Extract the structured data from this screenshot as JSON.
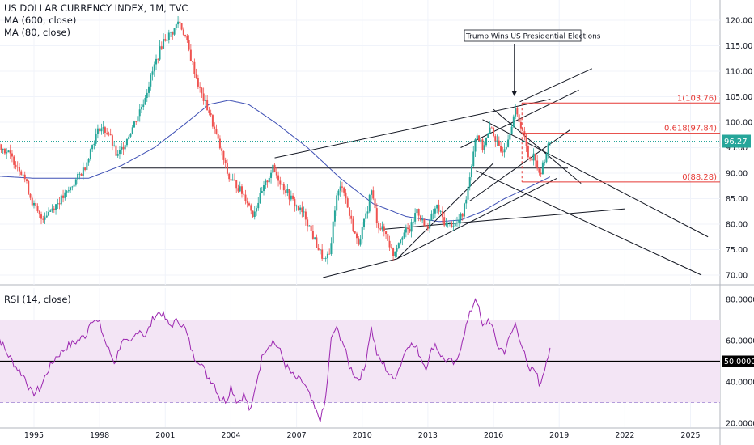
{
  "header": {
    "title": "US DOLLAR CURRENCY INDEX, 1M, TVC",
    "indicators": [
      "MA (600, close)",
      "MA (80, close)"
    ]
  },
  "rsi_panel": {
    "title": "RSI (14, close)"
  },
  "annotation": {
    "text": "Trump Wins US Presidential Elections"
  },
  "current_price": "96.27",
  "fib_labels": [
    "1(103.76)",
    "0.618(97.84)",
    "0(88.28)"
  ],
  "colors": {
    "up": "#26a69a",
    "down": "#ef5350",
    "ma80": "#3f51b5",
    "rsi": "#9c27b0",
    "rsi_band": "#f3e5f5",
    "fib": "#e53935",
    "price_line": "#26a69a",
    "price_tag": "#26a69a"
  },
  "chart_data": [
    {
      "type": "candlestick",
      "title": "US DOLLAR CURRENCY INDEX, 1M, TVC",
      "x_ticks": [
        "1995",
        "1998",
        "2001",
        "2004",
        "2007",
        "2010",
        "2013",
        "2016",
        "2019",
        "2022",
        "2025"
      ],
      "y_ticks": [
        "70.00",
        "75.00",
        "80.00",
        "85.00",
        "90.00",
        "95.00",
        "100.00",
        "105.00",
        "110.00",
        "115.00",
        "120.00"
      ],
      "ylim": [
        68,
        122
      ],
      "anchors": [
        [
          1993.0,
          93.0
        ],
        [
          1993.3,
          96.0
        ],
        [
          1993.8,
          94.0
        ],
        [
          1994.5,
          90.0
        ],
        [
          1994.9,
          84.5
        ],
        [
          1995.3,
          81.0
        ],
        [
          1995.8,
          83.0
        ],
        [
          1996.5,
          86.0
        ],
        [
          1997.3,
          91.0
        ],
        [
          1997.7,
          96.0
        ],
        [
          1998.0,
          99.0
        ],
        [
          1998.4,
          98.0
        ],
        [
          1998.8,
          93.0
        ],
        [
          1999.5,
          99.0
        ],
        [
          2000.0,
          104.0
        ],
        [
          2000.5,
          111.0
        ],
        [
          2000.9,
          116.0
        ],
        [
          2001.4,
          118.0
        ],
        [
          2001.6,
          120.0
        ],
        [
          2001.9,
          117.0
        ],
        [
          2002.2,
          112.0
        ],
        [
          2002.6,
          106.0
        ],
        [
          2003.0,
          102.0
        ],
        [
          2003.5,
          95.0
        ],
        [
          2003.9,
          89.0
        ],
        [
          2004.2,
          88.0
        ],
        [
          2004.7,
          85.0
        ],
        [
          2005.0,
          82.0
        ],
        [
          2005.4,
          86.0
        ],
        [
          2005.9,
          91.0
        ],
        [
          2006.3,
          88.0
        ],
        [
          2006.9,
          84.0
        ],
        [
          2007.4,
          81.5
        ],
        [
          2007.9,
          76.0
        ],
        [
          2008.3,
          72.5
        ],
        [
          2008.5,
          74.0
        ],
        [
          2008.8,
          85.0
        ],
        [
          2009.1,
          88.0
        ],
        [
          2009.4,
          82.0
        ],
        [
          2009.8,
          76.0
        ],
        [
          2010.2,
          82.0
        ],
        [
          2010.4,
          87.0
        ],
        [
          2010.7,
          80.0
        ],
        [
          2011.1,
          78.0
        ],
        [
          2011.4,
          74.0
        ],
        [
          2011.8,
          78.0
        ],
        [
          2012.2,
          79.0
        ],
        [
          2012.5,
          83.0
        ],
        [
          2012.9,
          79.0
        ],
        [
          2013.4,
          83.5
        ],
        [
          2013.8,
          80.0
        ],
        [
          2014.3,
          80.0
        ],
        [
          2014.6,
          82.0
        ],
        [
          2014.9,
          89.0
        ],
        [
          2015.2,
          98.0
        ],
        [
          2015.5,
          95.0
        ],
        [
          2015.9,
          99.0
        ],
        [
          2016.3,
          94.0
        ],
        [
          2016.6,
          96.0
        ],
        [
          2016.9,
          101.0
        ],
        [
          2017.0,
          102.0
        ],
        [
          2017.3,
          99.0
        ],
        [
          2017.6,
          93.0
        ],
        [
          2017.9,
          93.5
        ],
        [
          2018.1,
          89.0
        ],
        [
          2018.4,
          94.0
        ],
        [
          2018.6,
          96.27
        ]
      ],
      "ma80_anchors": [
        [
          1993.0,
          89.5
        ],
        [
          1995.0,
          89.0
        ],
        [
          1997.5,
          89.0
        ],
        [
          1999.0,
          91.5
        ],
        [
          2000.5,
          95.0
        ],
        [
          2002.0,
          100.0
        ],
        [
          2003.0,
          103.5
        ],
        [
          2003.9,
          104.3
        ],
        [
          2004.8,
          103.5
        ],
        [
          2006.0,
          100.0
        ],
        [
          2007.5,
          95.0
        ],
        [
          2009.0,
          89.0
        ],
        [
          2010.5,
          84.0
        ],
        [
          2012.0,
          81.5
        ],
        [
          2013.5,
          80.5
        ],
        [
          2014.5,
          80.8
        ],
        [
          2015.5,
          82.5
        ],
        [
          2016.5,
          85.0
        ],
        [
          2017.5,
          87.0
        ],
        [
          2018.6,
          89.3
        ]
      ],
      "current_value": 96.27,
      "fibonacci": [
        {
          "level": "1",
          "value": 103.76
        },
        {
          "level": "0.618",
          "value": 97.84
        },
        {
          "level": "0",
          "value": 88.28
        }
      ],
      "series": [
        {
          "name": "MA (600, close)"
        },
        {
          "name": "MA (80, close)"
        }
      ]
    },
    {
      "type": "line",
      "title": "RSI (14, close)",
      "y_ticks": [
        "20.0000",
        "40.0000",
        "60.0000",
        "80.0000"
      ],
      "ylim": [
        17,
        86
      ],
      "band": [
        30,
        70
      ],
      "midline": 50,
      "midline_label": "50.0000",
      "anchors": [
        [
          1993.0,
          58
        ],
        [
          1993.3,
          64
        ],
        [
          1993.7,
          55
        ],
        [
          1994.2,
          47
        ],
        [
          1994.6,
          42
        ],
        [
          1994.9,
          34
        ],
        [
          1995.3,
          37
        ],
        [
          1995.6,
          45
        ],
        [
          1996.0,
          52
        ],
        [
          1996.5,
          57
        ],
        [
          1997.0,
          60
        ],
        [
          1997.4,
          63
        ],
        [
          1997.6,
          71
        ],
        [
          1998.0,
          68
        ],
        [
          1998.3,
          58
        ],
        [
          1998.7,
          49
        ],
        [
          1999.0,
          60
        ],
        [
          1999.4,
          58
        ],
        [
          1999.8,
          66
        ],
        [
          2000.1,
          62
        ],
        [
          2000.5,
          72
        ],
        [
          2000.8,
          74
        ],
        [
          2001.2,
          67
        ],
        [
          2001.6,
          70
        ],
        [
          2001.9,
          66
        ],
        [
          2002.3,
          52
        ],
        [
          2002.6,
          50
        ],
        [
          2002.9,
          43
        ],
        [
          2003.2,
          40
        ],
        [
          2003.5,
          32
        ],
        [
          2003.8,
          31
        ],
        [
          2004.0,
          38
        ],
        [
          2004.3,
          30
        ],
        [
          2004.6,
          34
        ],
        [
          2004.9,
          25
        ],
        [
          2005.2,
          42
        ],
        [
          2005.5,
          55
        ],
        [
          2005.9,
          60
        ],
        [
          2006.2,
          56
        ],
        [
          2006.5,
          48
        ],
        [
          2006.9,
          42
        ],
        [
          2007.3,
          40
        ],
        [
          2007.6,
          33
        ],
        [
          2007.9,
          25
        ],
        [
          2008.1,
          22
        ],
        [
          2008.3,
          29
        ],
        [
          2008.6,
          62
        ],
        [
          2008.8,
          66
        ],
        [
          2009.1,
          60
        ],
        [
          2009.4,
          48
        ],
        [
          2009.8,
          41
        ],
        [
          2010.1,
          46
        ],
        [
          2010.4,
          67
        ],
        [
          2010.7,
          52
        ],
        [
          2011.0,
          48
        ],
        [
          2011.4,
          41
        ],
        [
          2011.7,
          47
        ],
        [
          2012.1,
          59
        ],
        [
          2012.5,
          56
        ],
        [
          2012.9,
          47
        ],
        [
          2013.3,
          59
        ],
        [
          2013.7,
          51
        ],
        [
          2014.0,
          50
        ],
        [
          2014.3,
          48
        ],
        [
          2014.6,
          62
        ],
        [
          2014.9,
          72
        ],
        [
          2015.2,
          82
        ],
        [
          2015.5,
          66
        ],
        [
          2015.8,
          71
        ],
        [
          2016.2,
          57
        ],
        [
          2016.5,
          55
        ],
        [
          2016.8,
          63
        ],
        [
          2017.0,
          68
        ],
        [
          2017.3,
          58
        ],
        [
          2017.6,
          45
        ],
        [
          2017.9,
          47
        ],
        [
          2018.1,
          38
        ],
        [
          2018.4,
          50
        ],
        [
          2018.6,
          55
        ]
      ]
    }
  ]
}
